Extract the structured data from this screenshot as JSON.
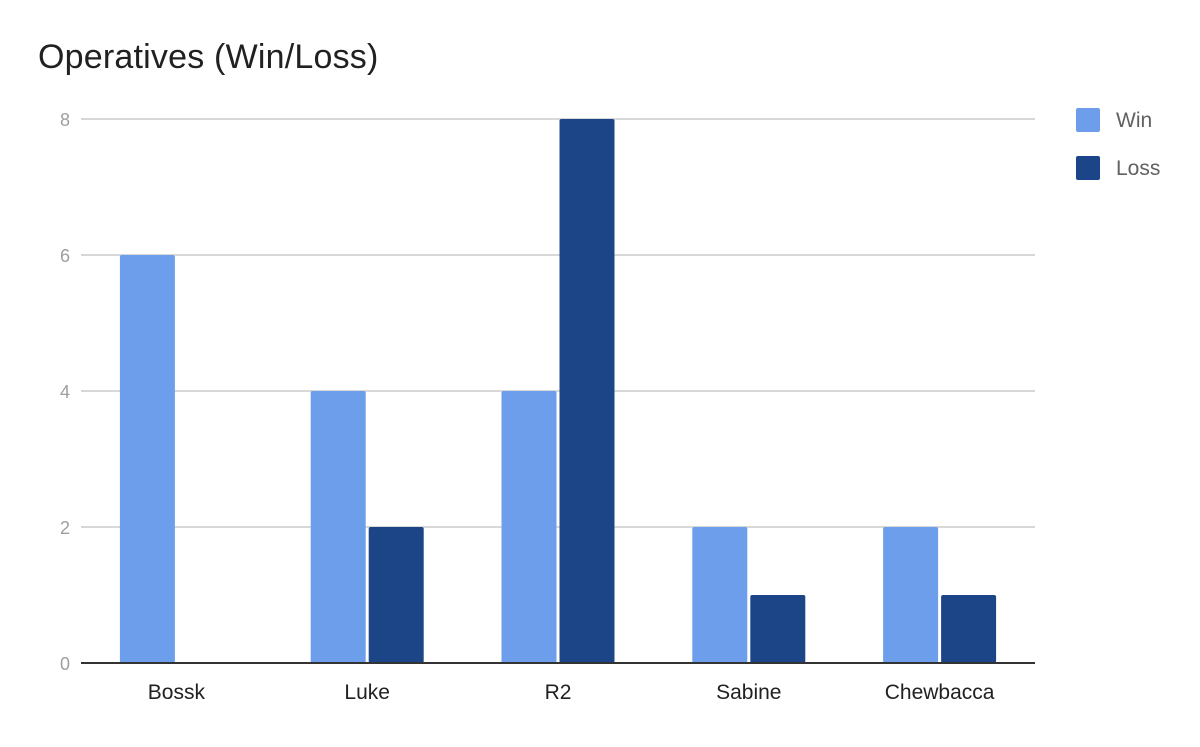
{
  "chart_data": {
    "type": "bar",
    "title": "Operatives (Win/Loss)",
    "xlabel": "",
    "ylabel": "",
    "categories": [
      "Bossk",
      "Luke",
      "R2",
      "Sabine",
      "Chewbacca"
    ],
    "series": [
      {
        "name": "Win",
        "color": "#6d9eeb",
        "values": [
          6,
          4,
          4,
          2,
          2
        ]
      },
      {
        "name": "Loss",
        "color": "#1c4587",
        "values": [
          0,
          2,
          8,
          1,
          1
        ]
      }
    ],
    "ylim": [
      0,
      8
    ],
    "yticks": [
      "0",
      "2",
      "4",
      "6",
      "8"
    ],
    "grid": true,
    "legend_position": "right"
  }
}
